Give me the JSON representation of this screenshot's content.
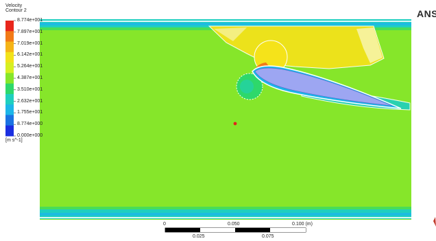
{
  "legend": {
    "title_line1": "Velocity",
    "title_line2": "Contour 2",
    "unit": "[m s^-1]",
    "levels": [
      "8.774e+001",
      "7.897e+001",
      "7.019e+001",
      "6.142e+001",
      "5.264e+001",
      "4.387e+001",
      "3.510e+001",
      "2.632e+001",
      "1.755e+001",
      "8.774e+000",
      "0.000e+000"
    ],
    "colors": [
      "#e8261c",
      "#f27a17",
      "#f5b418",
      "#f2e21b",
      "#d7ef22",
      "#86e62a",
      "#2ed86b",
      "#1fcfbf",
      "#1cb6e8",
      "#1a73e2",
      "#1a2ee0"
    ]
  },
  "field_colors": {
    "main": "#86e62a",
    "high": "#f2e21b",
    "mid": "#d7ef22",
    "low": "#2ed86b",
    "wall": "#1cb6e8",
    "airfoil": "#9da6f2"
  },
  "scale": {
    "top_labels": [
      "0",
      "0.050",
      "0.100  (m)"
    ],
    "bottom_labels": [
      "0.025",
      "0.075"
    ]
  },
  "logo": {
    "text": "ANS"
  }
}
